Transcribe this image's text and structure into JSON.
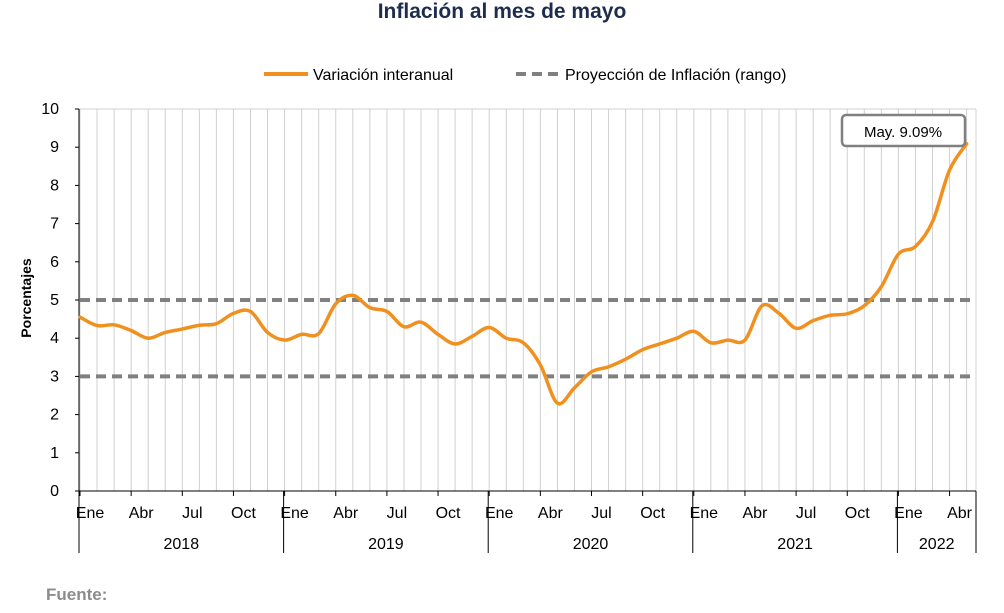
{
  "title": "Inflación al mes de mayo",
  "source_label": "Fuente:",
  "colors": {
    "series": "#f0901e",
    "projection": "#808080",
    "grid": "#d0d0d0",
    "title": "#1f2d4d"
  },
  "chart_data": {
    "type": "line",
    "title": "Inflación al mes de mayo",
    "ylabel": "Porcentajes",
    "xlabel": "",
    "ylim": [
      0,
      10
    ],
    "yticks": [
      "0",
      "1",
      "2",
      "3",
      "4",
      "5",
      "6",
      "7",
      "8",
      "9",
      "10"
    ],
    "month_tick_labels": [
      "Ene",
      "Abr",
      "Jul",
      "Oct",
      "Ene",
      "Abr",
      "Jul",
      "Oct",
      "Ene",
      "Abr",
      "Jul",
      "Oct",
      "Ene",
      "Abr",
      "Jul",
      "Oct",
      "Ene",
      "Abr"
    ],
    "year_labels": [
      "2018",
      "2019",
      "2020",
      "2021",
      "2022"
    ],
    "legend_position": "top-center",
    "grid": "vertical",
    "series": [
      {
        "name": "Variación interanual",
        "color": "#f0901e",
        "style": "solid",
        "x": [
          "2018-01",
          "2018-02",
          "2018-03",
          "2018-04",
          "2018-05",
          "2018-06",
          "2018-07",
          "2018-08",
          "2018-09",
          "2018-10",
          "2018-11",
          "2018-12",
          "2019-01",
          "2019-02",
          "2019-03",
          "2019-04",
          "2019-05",
          "2019-06",
          "2019-07",
          "2019-08",
          "2019-09",
          "2019-10",
          "2019-11",
          "2019-12",
          "2020-01",
          "2020-02",
          "2020-03",
          "2020-04",
          "2020-05",
          "2020-06",
          "2020-07",
          "2020-08",
          "2020-09",
          "2020-10",
          "2020-11",
          "2020-12",
          "2021-01",
          "2021-02",
          "2021-03",
          "2021-04",
          "2021-05",
          "2021-06",
          "2021-07",
          "2021-08",
          "2021-09",
          "2021-10",
          "2021-11",
          "2021-12",
          "2022-01",
          "2022-02",
          "2022-03",
          "2022-04",
          "2022-05"
        ],
        "values": [
          4.55,
          4.33,
          4.35,
          4.2,
          4.0,
          4.15,
          4.24,
          4.34,
          4.38,
          4.65,
          4.7,
          4.15,
          3.95,
          4.1,
          4.12,
          4.9,
          5.12,
          4.8,
          4.7,
          4.3,
          4.42,
          4.1,
          3.85,
          4.05,
          4.28,
          4.0,
          3.88,
          3.3,
          2.3,
          2.7,
          3.12,
          3.25,
          3.45,
          3.7,
          3.85,
          4.0,
          4.18,
          3.88,
          3.95,
          3.95,
          4.85,
          4.65,
          4.26,
          4.46,
          4.6,
          4.64,
          4.85,
          5.35,
          6.2,
          6.4,
          7.05,
          8.4,
          9.09
        ]
      },
      {
        "name": "Proyección de Inflación (rango)",
        "color": "#808080",
        "style": "dashed",
        "values_lower": 3,
        "values_upper": 5
      }
    ],
    "annotations": [
      {
        "text": "May. 9.09%",
        "x": "2022-05",
        "y": 9.09
      }
    ]
  }
}
